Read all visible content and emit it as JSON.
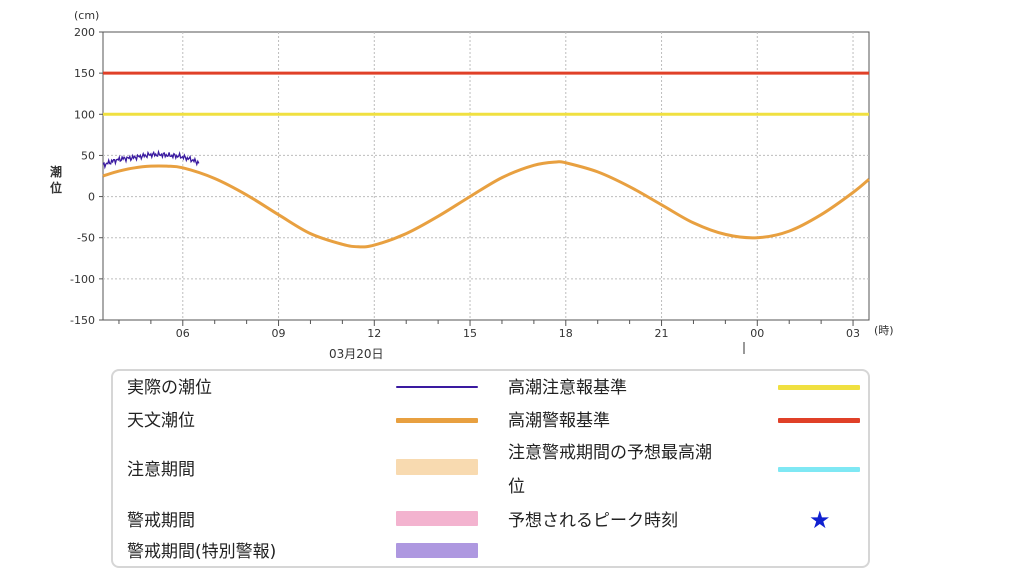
{
  "chart_data": {
    "type": "line",
    "unit_label": "(cm)",
    "ylabel": "潮位",
    "x_unit_label": "(時)",
    "ylim": [
      -150,
      200
    ],
    "yticks": [
      200,
      150,
      100,
      50,
      0,
      -50,
      -100,
      -150
    ],
    "x_hour_range": [
      3.5,
      27.5
    ],
    "xticks": [
      {
        "hour": 6,
        "label": "06"
      },
      {
        "hour": 9,
        "label": "09"
      },
      {
        "hour": 12,
        "label": "12"
      },
      {
        "hour": 15,
        "label": "15"
      },
      {
        "hour": 18,
        "label": "18"
      },
      {
        "hour": 21,
        "label": "21"
      },
      {
        "hour": 24,
        "label": "00"
      },
      {
        "hour": 27,
        "label": "03"
      }
    ],
    "date_label": "03月20日",
    "series": [
      {
        "name": "実際の潮位",
        "color": "#3a1aa0",
        "type": "observed",
        "x": [
          3.5,
          3.8,
          4.1,
          4.4,
          4.7,
          5.0,
          5.3,
          5.6,
          5.9,
          6.2,
          6.5
        ],
        "y": [
          38,
          43,
          46,
          47,
          49,
          51,
          51,
          50,
          49,
          46,
          41
        ]
      },
      {
        "name": "天文潮位",
        "color": "#e8a040",
        "type": "astronomical",
        "x": [
          3.5,
          4.0,
          4.5,
          5.0,
          5.5,
          6.0,
          7.0,
          8.0,
          9.0,
          10.0,
          11.0,
          11.5,
          12.0,
          13.0,
          14.0,
          15.0,
          16.0,
          17.0,
          17.7,
          18.0,
          19.0,
          20.0,
          21.0,
          22.0,
          23.0,
          24.0,
          25.0,
          26.0,
          27.0,
          27.5
        ],
        "y": [
          25,
          31,
          35,
          37,
          37,
          35,
          22,
          2,
          -22,
          -45,
          -58,
          -61,
          -59,
          -45,
          -24,
          0,
          23,
          38,
          42,
          41,
          30,
          12,
          -10,
          -32,
          -46,
          -50,
          -42,
          -22,
          5,
          21
        ]
      },
      {
        "name": "高潮注意報基準",
        "color": "#f0e040",
        "type": "threshold",
        "value": 100
      },
      {
        "name": "高潮警報基準",
        "color": "#e04028",
        "type": "threshold",
        "value": 150
      }
    ],
    "grid": true
  },
  "legend": {
    "items": [
      {
        "label": "実際の潮位",
        "color": "#3a1aa0",
        "kind": "line"
      },
      {
        "label": "天文潮位",
        "color": "#e8a040",
        "kind": "line"
      },
      {
        "label": "注意期間",
        "color": "#f8dab0",
        "kind": "band"
      },
      {
        "label": "警戒期間",
        "color": "#f3b3cf",
        "kind": "band"
      },
      {
        "label": "警戒期間(特別警報)",
        "color": "#ae98e0",
        "kind": "band"
      },
      {
        "label": "高潮注意報基準",
        "color": "#f0e040",
        "kind": "line"
      },
      {
        "label": "高潮警報基準",
        "color": "#e04028",
        "kind": "line"
      },
      {
        "label": "注意警戒期間の予想最高潮",
        "label_cont": "位",
        "color": "#7fe8f4",
        "kind": "line"
      },
      {
        "label": "予想されるピーク時刻",
        "color": "#1020d0",
        "kind": "star",
        "icon": "star-icon"
      }
    ]
  }
}
